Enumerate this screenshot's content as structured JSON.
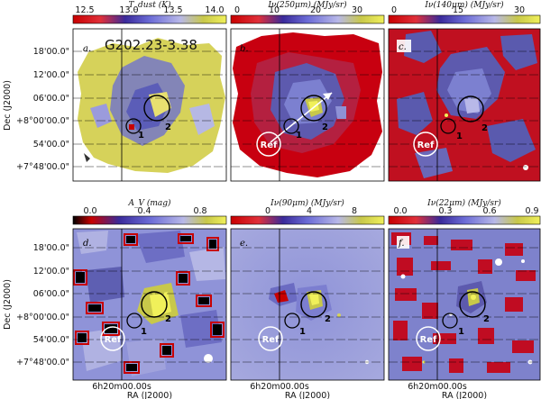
{
  "chart_data": {
    "type": "heatmap",
    "field": "G202.23-3.38",
    "ylabel": "Dec (J2000)",
    "xlabel": "RA (J2000)",
    "ra_tick": "6h20m00.00s",
    "dec_ticks": [
      "18'00.0\"",
      "12'00.0\"",
      "06'00.0\"",
      "+8°00'00.0\"",
      "54'00.0\"",
      "+7°48'00.0\""
    ],
    "regions": [
      "1",
      "2",
      "Ref"
    ],
    "panels": [
      {
        "id": "a",
        "label": "a.",
        "quantity": "T_dust (K)",
        "cmap": "red-blue-yellow",
        "ticks": [
          "12.5",
          "13.0",
          "13.5",
          "14.0"
        ],
        "range": [
          12.5,
          14.2
        ]
      },
      {
        "id": "b",
        "label": "b.",
        "quantity": "Iν(250μm) (MJy/sr)",
        "cmap": "red-blue-yellow",
        "ticks": [
          "0",
          "10",
          "20",
          "30"
        ],
        "range": [
          0,
          36
        ]
      },
      {
        "id": "c",
        "label": "c.",
        "quantity": "Iν(140μm) (MJy/sr)",
        "cmap": "red-blue-yellow",
        "ticks": [
          "0",
          "15",
          "30"
        ],
        "range": [
          0,
          35
        ]
      },
      {
        "id": "d",
        "label": "d.",
        "quantity": "A_V (mag)",
        "cmap": "black-red-blue-yellow",
        "ticks": [
          "0.0",
          "0.4",
          "0.8"
        ],
        "range": [
          -0.1,
          1.0
        ]
      },
      {
        "id": "e",
        "label": "e.",
        "quantity": "Iν(90μm) (MJy/sr)",
        "cmap": "red-blue-yellow",
        "ticks": [
          "0",
          "4",
          "8"
        ],
        "range": [
          -1.5,
          9.5
        ]
      },
      {
        "id": "f",
        "label": "f.",
        "quantity": "Iν(22μm) (MJy/sr)",
        "cmap": "red-blue-yellow",
        "ticks": [
          "0.0",
          "0.3",
          "0.6",
          "0.9"
        ],
        "range": [
          -0.1,
          0.9
        ]
      }
    ]
  },
  "text": {
    "field_name": "G202.23-3.38",
    "ylabel": "Dec (J2000)",
    "xlabel": "RA (J2000)",
    "ra_tick": "6h20m00.00s",
    "dec": {
      "t1": "18'00.0\"",
      "t2": "12'00.0\"",
      "t3": "06'00.0\"",
      "t4": "+8°00'00.0\"",
      "t5": "54'00.0\"",
      "t6": "+7°48'00.0\""
    },
    "region1": "1",
    "region2": "2",
    "ref": "Ref",
    "labels": {
      "a": "a.",
      "b": "b.",
      "c": "c.",
      "d": "d.",
      "e": "e.",
      "f": "f."
    },
    "cb": {
      "a": {
        "title": "T_dust (K)",
        "t": [
          "12.5",
          "13.0",
          "13.5",
          "14.0"
        ]
      },
      "b": {
        "title": "Iν(250μm) (MJy/sr)",
        "t": [
          "0",
          "10",
          "20",
          "30"
        ]
      },
      "c": {
        "title": "Iν(140μm) (MJy/sr)",
        "t": [
          "0",
          "15",
          "30"
        ]
      },
      "d": {
        "title": "A_V (mag)",
        "t": [
          "0.0",
          "0.4",
          "0.8"
        ]
      },
      "e": {
        "title": "Iν(90μm) (MJy/sr)",
        "t": [
          "0",
          "4",
          "8"
        ]
      },
      "f": {
        "title": "Iν(22μm) (MJy/sr)",
        "t": [
          "0.0",
          "0.3",
          "0.6",
          "0.9"
        ]
      }
    }
  },
  "colors": {
    "cmap_stops": [
      "#c80000",
      "#e0303a",
      "#3a2a9a",
      "#6b6bd6",
      "#b8b8e8",
      "#c8c84a",
      "#f0f05a"
    ],
    "cmap_stops_av": [
      "#000000",
      "#c80000",
      "#3a2a9a",
      "#6b6bd6",
      "#b8b8e8",
      "#c8c84a",
      "#f0f05a"
    ]
  }
}
